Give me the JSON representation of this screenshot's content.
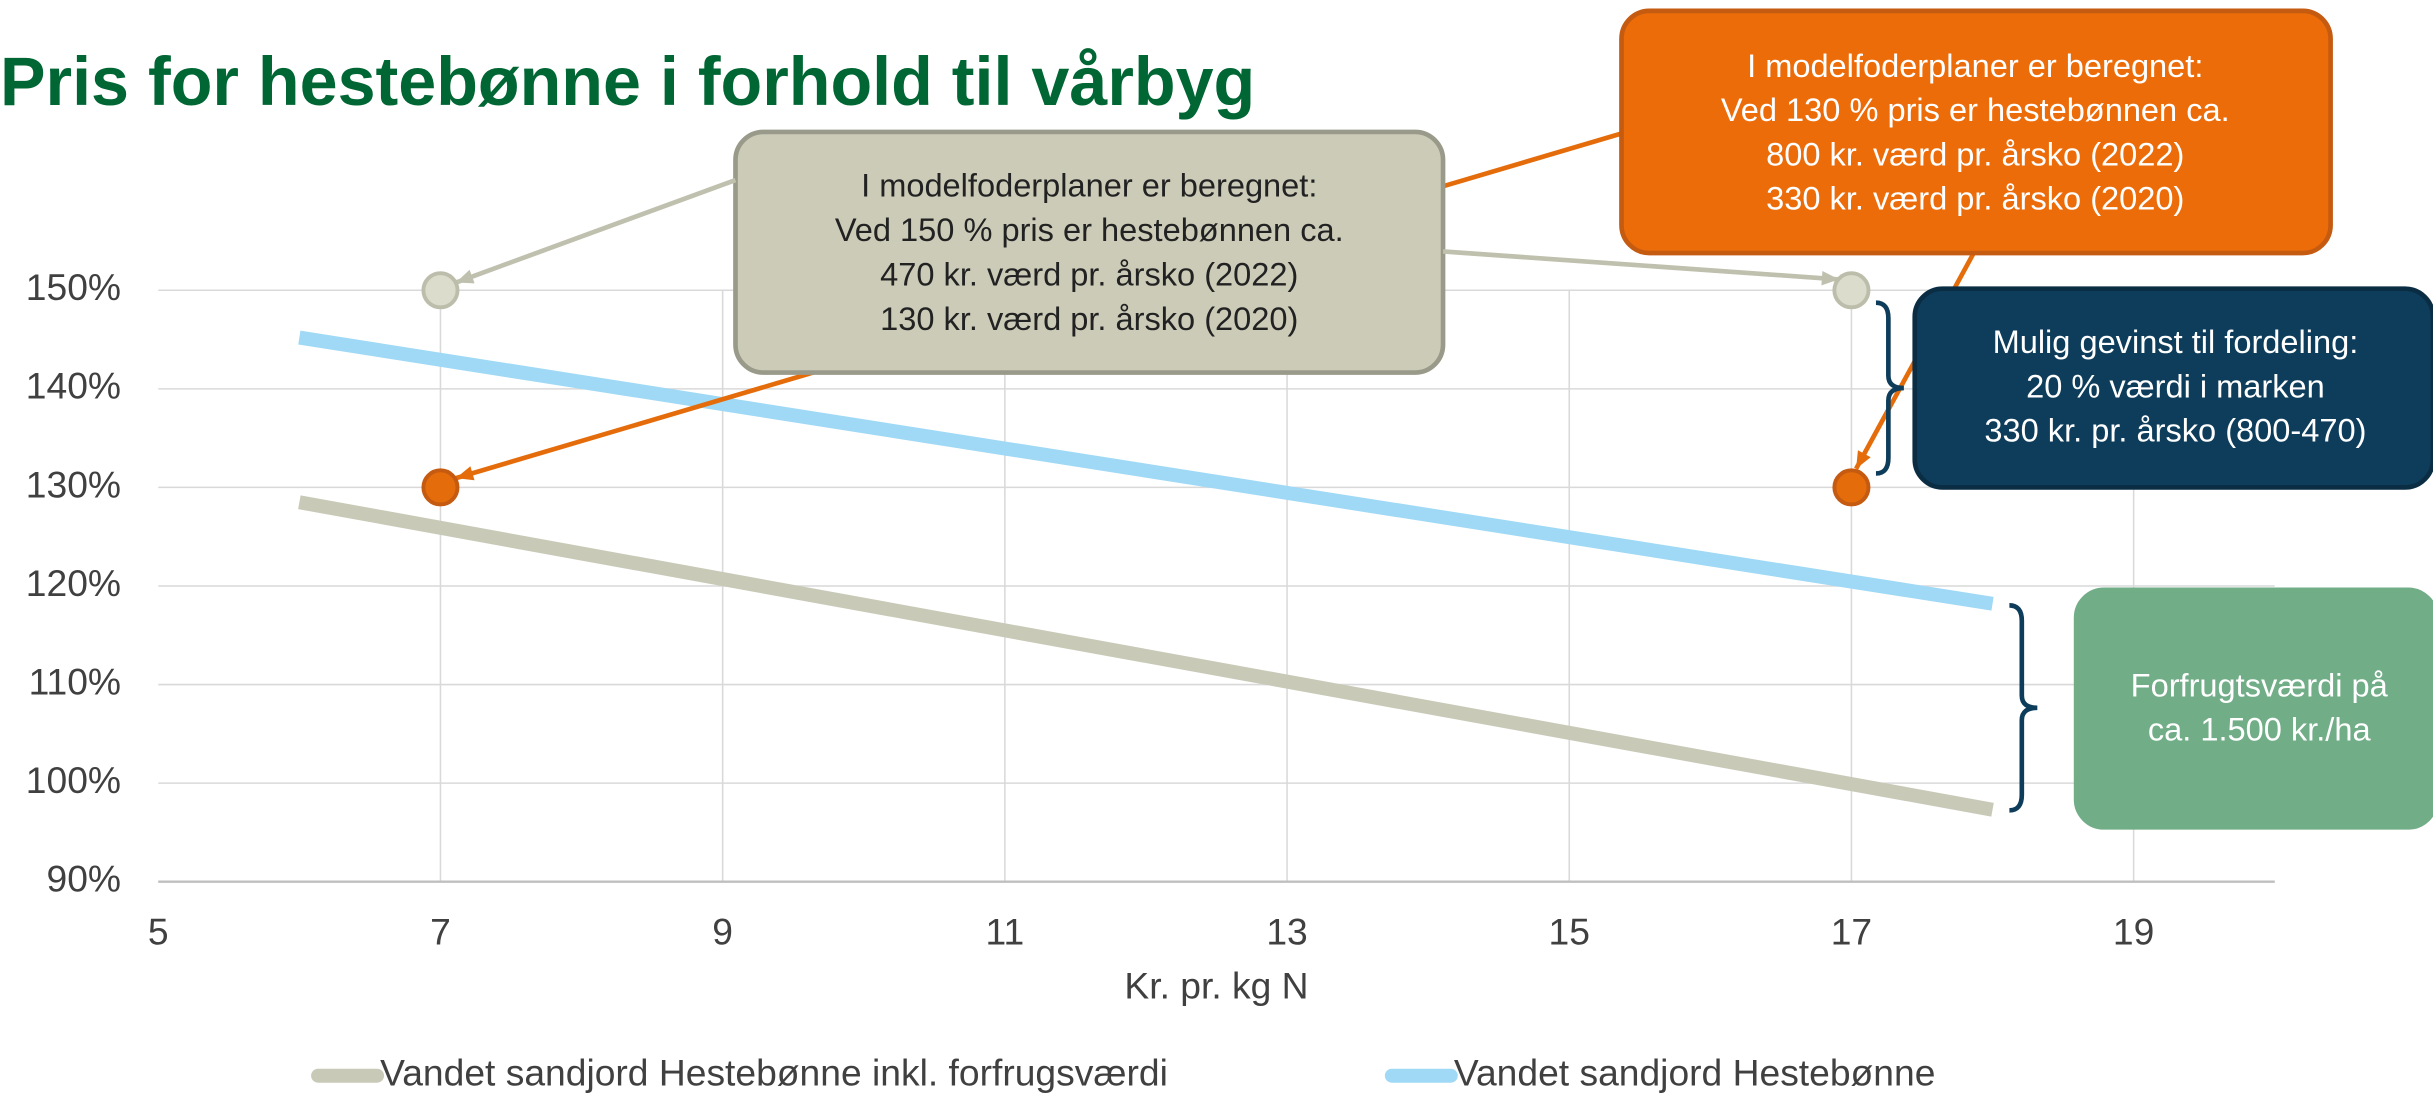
{
  "chart_data": {
    "type": "line",
    "title": "Pris for hestebønne i forhold til vårbyg",
    "xlabel": "Kr. pr. kg N",
    "xlim": [
      5,
      20
    ],
    "xticks": [
      5,
      7,
      9,
      11,
      13,
      15,
      17,
      19
    ],
    "ylim": [
      90,
      150
    ],
    "yticks": [
      {
        "value": 90,
        "label": "90%"
      },
      {
        "value": 100,
        "label": "100%"
      },
      {
        "value": 110,
        "label": "110%"
      },
      {
        "value": 120,
        "label": "120%"
      },
      {
        "value": 130,
        "label": "130%"
      },
      {
        "value": 140,
        "label": "140%"
      },
      {
        "value": 150,
        "label": "150%"
      }
    ],
    "grid": true,
    "legend": "bottom",
    "series": [
      {
        "name": "Vandet sandjord Hestebønne inkl. forfrugsværdi",
        "color": "#c9c9b8",
        "x": [
          6,
          18
        ],
        "values": [
          128.5,
          97.3
        ]
      },
      {
        "name": "Vandet sandjord Hestebønne",
        "color": "#9fd9f5",
        "x": [
          6,
          18
        ],
        "values": [
          145.2,
          118.2
        ]
      }
    ],
    "markers": [
      {
        "color": "#dcdccd",
        "x": [
          7,
          17
        ],
        "values": [
          150,
          150
        ]
      },
      {
        "color": "#e46c0a",
        "x": [
          7,
          17
        ],
        "values": [
          130,
          130
        ]
      }
    ],
    "annotations": [
      {
        "lines": [
          "I modelfoderplaner er beregnet:",
          "Ved 130 % pris er hestebønnen ca.",
          "800 kr. værd pr. årsko (2022)",
          "330 kr. værd pr. årsko (2020)"
        ]
      },
      {
        "lines": [
          "I modelfoderplaner er beregnet:",
          "Ved 150 % pris er hestebønnen ca.",
          "470 kr. værd pr. årsko (2022)",
          "130 kr. værd pr. årsko (2020)"
        ]
      },
      {
        "lines": [
          "Mulig gevinst til fordeling:",
          "20 % værdi i marken",
          "330 kr. pr. årsko (800-470)"
        ]
      },
      {
        "lines": [
          "Forfrugtsværdi på",
          "ca. 1.500 kr./ha"
        ]
      }
    ]
  }
}
